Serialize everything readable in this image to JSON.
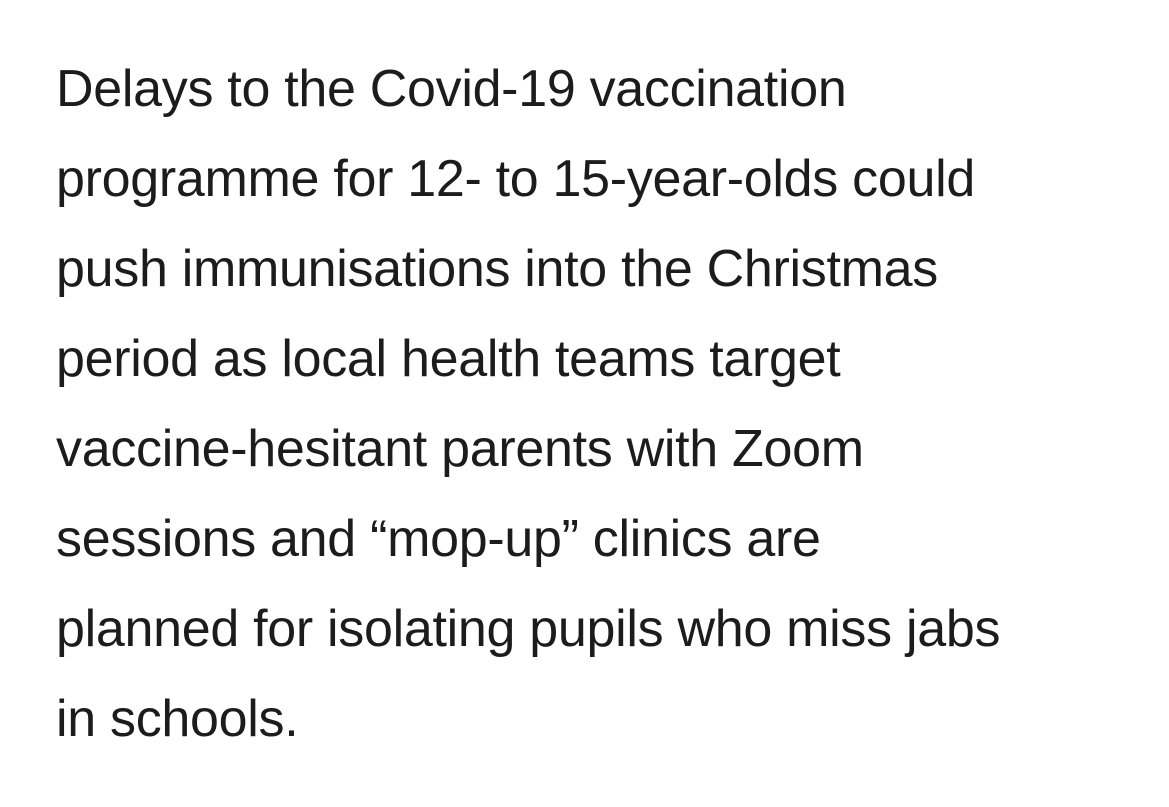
{
  "article": {
    "lines": [
      "Delays to the Covid-19 vaccination",
      "programme for 12- to 15-year-olds could",
      "push immunisations into the Christmas",
      "period as local health teams target",
      "vaccine-hesitant parents with Zoom",
      "sessions and “mop-up” clinics are",
      "planned for isolating pupils who miss jabs",
      "in schools."
    ]
  }
}
